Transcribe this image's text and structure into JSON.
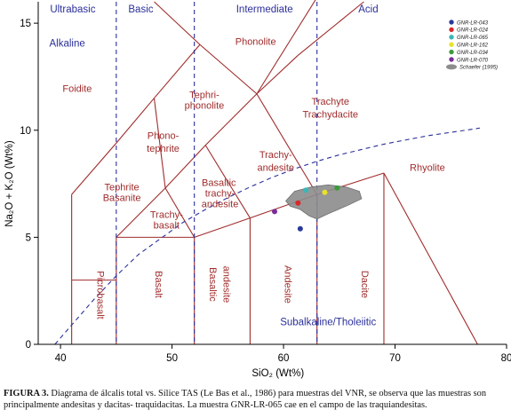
{
  "chart_data": {
    "type": "scatter",
    "title": "",
    "xlabel": "SiO₂ (Wt%)",
    "ylabel": "Na₂O + K₂O (Wt%)",
    "xlim": [
      38,
      80
    ],
    "ylim": [
      0,
      16
    ],
    "x_ticks": [
      40,
      50,
      60,
      70,
      80
    ],
    "y_ticks": [
      0,
      5,
      10,
      15
    ],
    "grid": false,
    "legend_position": "top-right",
    "series": [
      {
        "name": "GNR-LR-043",
        "color": "#2a3a9a",
        "x": [
          61.5
        ],
        "y": [
          5.4
        ]
      },
      {
        "name": "GNR-LR-024",
        "color": "#d8282a",
        "x": [
          61.3
        ],
        "y": [
          6.6
        ]
      },
      {
        "name": "GNR-LR-065",
        "color": "#3bb7b7",
        "x": [
          62.0
        ],
        "y": [
          7.2
        ]
      },
      {
        "name": "GNR-LR-162",
        "color": "#e8e22a",
        "x": [
          63.7
        ],
        "y": [
          7.1
        ]
      },
      {
        "name": "GNR-LR-034",
        "color": "#3c9c3c",
        "x": [
          64.8
        ],
        "y": [
          7.3
        ]
      },
      {
        "name": "GNR-LR-070",
        "color": "#7a2d9a",
        "x": [
          59.2
        ],
        "y": [
          6.2
        ]
      }
    ],
    "field_polygon": {
      "name": "Schaefer (1995)",
      "color": "#8c8c8c",
      "points": [
        [
          60.2,
          6.7
        ],
        [
          61.0,
          7.15
        ],
        [
          62.5,
          7.35
        ],
        [
          64.0,
          7.45
        ],
        [
          65.6,
          7.35
        ],
        [
          66.8,
          7.15
        ],
        [
          67.0,
          6.8
        ],
        [
          65.8,
          6.5
        ],
        [
          64.0,
          6.1
        ],
        [
          63.0,
          5.85
        ],
        [
          62.3,
          6.0
        ],
        [
          61.5,
          6.3
        ],
        [
          60.6,
          6.45
        ]
      ]
    },
    "field_labels": [
      {
        "text": "Foidite",
        "x": 41.5,
        "y": 11.8
      },
      {
        "text": "Phonolite",
        "x": 57.5,
        "y": 14.0
      },
      {
        "text": "Tephri-",
        "x": 52.9,
        "y": 11.5
      },
      {
        "text": "phonolite",
        "x": 52.9,
        "y": 11.0
      },
      {
        "text": "Trachyte",
        "x": 64.2,
        "y": 11.2
      },
      {
        "text": "Trachydacite",
        "x": 64.2,
        "y": 10.6
      },
      {
        "text": "Phono-",
        "x": 49.2,
        "y": 9.6
      },
      {
        "text": "tephrite",
        "x": 49.2,
        "y": 9.0
      },
      {
        "text": "Trachy-",
        "x": 59.3,
        "y": 8.7
      },
      {
        "text": "andesite",
        "x": 59.3,
        "y": 8.1
      },
      {
        "text": "Rhyolite",
        "x": 72.9,
        "y": 8.1
      },
      {
        "text": "Basaltic",
        "x": 54.2,
        "y": 7.4
      },
      {
        "text": "trachy-",
        "x": 54.3,
        "y": 6.9
      },
      {
        "text": "andesite",
        "x": 54.3,
        "y": 6.4
      },
      {
        "text": "Tephrite",
        "x": 45.5,
        "y": 7.2
      },
      {
        "text": "Basanite",
        "x": 45.5,
        "y": 6.7
      },
      {
        "text": "Trachy-",
        "x": 49.5,
        "y": 5.9
      },
      {
        "text": "basalt",
        "x": 49.5,
        "y": 5.4
      }
    ],
    "vertical_field_labels": [
      {
        "text": "Picrobasalt",
        "x": 43.3,
        "y": 2.3
      },
      {
        "text": "Basalt",
        "x": 48.5,
        "y": 2.8
      },
      {
        "text": "Basaltic",
        "x": 53.4,
        "y": 2.8
      },
      {
        "text": "andesite",
        "x": 54.6,
        "y": 2.8
      },
      {
        "text": "Andesite",
        "x": 60.1,
        "y": 2.8
      },
      {
        "text": "Dacite",
        "x": 67.0,
        "y": 2.8
      }
    ],
    "category_labels": [
      {
        "text": "Ultrabasic",
        "x": 41.1,
        "y": 15.5
      },
      {
        "text": "Basic",
        "x": 47.2,
        "y": 15.5
      },
      {
        "text": "Intermediate",
        "x": 58.3,
        "y": 15.5
      },
      {
        "text": "Acid",
        "x": 67.6,
        "y": 15.5
      },
      {
        "text": "Alkaline",
        "x": 40.6,
        "y": 13.9
      },
      {
        "text": "Subalkaline/Tholeiitic",
        "x": 64.0,
        "y": 0.9
      }
    ]
  },
  "caption": {
    "label": "FIGURA 3.",
    "text": " Diagrama de álcalis total vs. Sílice TAS (Le Bas et al., 1986) para muestras del VNR, se observa que las muestras son principalmente andesitas y dacitas- traquidacitas. La muestra GNR-LR-065 cae en el campo de las traquiandesitas."
  }
}
